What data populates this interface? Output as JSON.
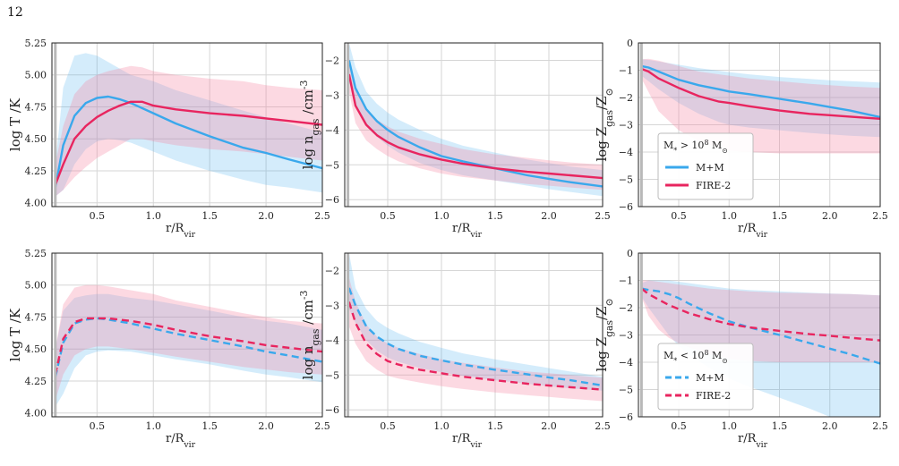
{
  "page_number": "12",
  "colors": {
    "mm": "#3aa8ec",
    "fire": "#e8255f",
    "mm_band": "#3aa8ec",
    "fire_band": "#f4829f",
    "grid": "#d6d6d6",
    "vline": "#b8b8b8"
  },
  "chart_data": [
    {
      "id": "temp-high",
      "type": "line",
      "row": 0,
      "col": 0,
      "ylabel": "log T /K",
      "xlabel": "r/R_vir",
      "xlim": [
        0.1,
        2.5
      ],
      "ylim": [
        3.97,
        5.25
      ],
      "yticks": [
        "4.00",
        "4.25",
        "4.50",
        "4.75",
        "5.00",
        "5.25"
      ],
      "ytick_values": [
        4.0,
        4.25,
        4.5,
        4.75,
        5.0,
        5.25
      ],
      "xticks": [
        "0.5",
        "1.0",
        "1.5",
        "2.0",
        "2.5"
      ],
      "xtick_values": [
        0.5,
        1.0,
        1.5,
        2.0,
        2.5
      ],
      "dashed": false,
      "series": [
        {
          "key": "mm",
          "x": [
            0.13,
            0.2,
            0.3,
            0.4,
            0.5,
            0.6,
            0.7,
            0.8,
            1.0,
            1.2,
            1.5,
            1.8,
            2.0,
            2.2,
            2.5
          ],
          "y": [
            4.12,
            4.45,
            4.68,
            4.78,
            4.82,
            4.83,
            4.81,
            4.78,
            4.7,
            4.62,
            4.52,
            4.43,
            4.39,
            4.34,
            4.27
          ],
          "lo": [
            4.05,
            4.1,
            4.3,
            4.42,
            4.48,
            4.5,
            4.49,
            4.47,
            4.4,
            4.33,
            4.25,
            4.18,
            4.14,
            4.12,
            4.08
          ],
          "hi": [
            4.3,
            4.9,
            5.15,
            5.17,
            5.15,
            5.1,
            5.05,
            5.0,
            4.95,
            4.88,
            4.8,
            4.72,
            4.67,
            4.62,
            4.55
          ]
        },
        {
          "key": "fire",
          "x": [
            0.13,
            0.2,
            0.3,
            0.4,
            0.5,
            0.6,
            0.7,
            0.8,
            0.9,
            1.0,
            1.2,
            1.5,
            1.8,
            2.0,
            2.2,
            2.5
          ],
          "y": [
            4.14,
            4.3,
            4.5,
            4.6,
            4.67,
            4.72,
            4.76,
            4.79,
            4.79,
            4.76,
            4.73,
            4.7,
            4.68,
            4.66,
            4.64,
            4.61
          ],
          "lo": [
            4.05,
            4.1,
            4.2,
            4.28,
            4.35,
            4.4,
            4.45,
            4.5,
            4.5,
            4.48,
            4.45,
            4.42,
            4.4,
            4.38,
            4.36,
            4.33
          ],
          "hi": [
            4.3,
            4.6,
            4.85,
            4.95,
            5.0,
            5.03,
            5.05,
            5.07,
            5.06,
            5.03,
            5.0,
            4.97,
            4.95,
            4.92,
            4.9,
            4.88
          ]
        }
      ]
    },
    {
      "id": "ngas-high",
      "type": "line",
      "row": 0,
      "col": 1,
      "ylabel": "log n_gas /cm^-3",
      "xlabel": "r/R_vir",
      "xlim": [
        0.1,
        2.5
      ],
      "ylim": [
        -6.2,
        -1.5
      ],
      "yticks": [
        "-6",
        "-5",
        "-4",
        "-3",
        "-2"
      ],
      "ytick_values": [
        -6,
        -5,
        -4,
        -3,
        -2
      ],
      "xticks": [
        "0.5",
        "1.0",
        "1.5",
        "2.0",
        "2.5"
      ],
      "xtick_values": [
        0.5,
        1.0,
        1.5,
        2.0,
        2.5
      ],
      "dashed": false,
      "series": [
        {
          "key": "mm",
          "x": [
            0.14,
            0.2,
            0.3,
            0.4,
            0.5,
            0.6,
            0.8,
            1.0,
            1.2,
            1.5,
            1.8,
            2.0,
            2.2,
            2.5
          ],
          "y": [
            -2.0,
            -2.8,
            -3.4,
            -3.75,
            -4.0,
            -4.2,
            -4.5,
            -4.75,
            -4.9,
            -5.1,
            -5.3,
            -5.4,
            -5.5,
            -5.62
          ],
          "lo": [
            -2.6,
            -3.3,
            -3.9,
            -4.2,
            -4.45,
            -4.65,
            -4.95,
            -5.15,
            -5.3,
            -5.45,
            -5.6,
            -5.7,
            -5.78,
            -5.9
          ],
          "hi": [
            -1.5,
            -2.2,
            -2.9,
            -3.25,
            -3.5,
            -3.7,
            -4.0,
            -4.25,
            -4.45,
            -4.65,
            -4.85,
            -4.95,
            -5.05,
            -5.15
          ]
        },
        {
          "key": "fire",
          "x": [
            0.14,
            0.2,
            0.3,
            0.4,
            0.5,
            0.6,
            0.8,
            1.0,
            1.2,
            1.5,
            1.8,
            2.0,
            2.2,
            2.5
          ],
          "y": [
            -2.4,
            -3.3,
            -3.85,
            -4.15,
            -4.35,
            -4.5,
            -4.7,
            -4.85,
            -4.97,
            -5.1,
            -5.2,
            -5.25,
            -5.3,
            -5.38
          ],
          "lo": [
            -2.9,
            -3.8,
            -4.3,
            -4.55,
            -4.75,
            -4.9,
            -5.1,
            -5.25,
            -5.35,
            -5.45,
            -5.55,
            -5.6,
            -5.65,
            -5.72
          ],
          "hi": [
            -1.9,
            -2.8,
            -3.4,
            -3.7,
            -3.9,
            -4.05,
            -4.25,
            -4.4,
            -4.55,
            -4.7,
            -4.8,
            -4.87,
            -4.93,
            -5.0
          ]
        }
      ]
    },
    {
      "id": "zgas-high",
      "type": "line",
      "row": 0,
      "col": 2,
      "ylabel": "log Z_gas/Z_sun",
      "xlabel": "r/R_vir",
      "xlim": [
        0.1,
        2.5
      ],
      "ylim": [
        -6,
        0
      ],
      "yticks": [
        "-6",
        "-5",
        "-4",
        "-3",
        "-2",
        "-1",
        "0"
      ],
      "ytick_values": [
        -6,
        -5,
        -4,
        -3,
        -2,
        -1,
        0
      ],
      "xticks": [
        "0.5",
        "1.0",
        "1.5",
        "2.0",
        "2.5"
      ],
      "xtick_values": [
        0.5,
        1.0,
        1.5,
        2.0,
        2.5
      ],
      "dashed": false,
      "legend": {
        "title": "M_* > 10^8 M_sun",
        "entries": [
          {
            "key": "mm",
            "label": "M+M"
          },
          {
            "key": "fire",
            "label": "FIRE-2"
          }
        ]
      },
      "series": [
        {
          "key": "mm",
          "x": [
            0.13,
            0.2,
            0.3,
            0.5,
            0.7,
            0.9,
            1.0,
            1.2,
            1.5,
            1.8,
            2.0,
            2.2,
            2.5
          ],
          "y": [
            -0.85,
            -0.9,
            -1.05,
            -1.35,
            -1.55,
            -1.7,
            -1.78,
            -1.88,
            -2.05,
            -2.22,
            -2.35,
            -2.48,
            -2.72
          ],
          "lo": [
            -1.2,
            -1.4,
            -1.7,
            -2.2,
            -2.6,
            -2.9,
            -3.0,
            -3.1,
            -3.2,
            -3.3,
            -3.35,
            -3.4,
            -3.45
          ],
          "hi": [
            -0.6,
            -0.62,
            -0.68,
            -0.8,
            -0.92,
            -1.02,
            -1.07,
            -1.15,
            -1.25,
            -1.32,
            -1.37,
            -1.4,
            -1.45
          ]
        },
        {
          "key": "fire",
          "x": [
            0.13,
            0.2,
            0.3,
            0.5,
            0.7,
            0.9,
            1.0,
            1.2,
            1.5,
            1.8,
            2.0,
            2.2,
            2.5
          ],
          "y": [
            -0.95,
            -1.05,
            -1.3,
            -1.65,
            -1.95,
            -2.15,
            -2.2,
            -2.32,
            -2.48,
            -2.6,
            -2.65,
            -2.7,
            -2.78
          ],
          "lo": [
            -1.3,
            -1.8,
            -2.5,
            -3.2,
            -3.6,
            -3.85,
            -3.95,
            -4.0,
            -4.05,
            -4.05,
            -4.05,
            -4.05,
            -4.05
          ],
          "hi": [
            -0.6,
            -0.58,
            -0.65,
            -0.85,
            -1.05,
            -1.15,
            -1.2,
            -1.3,
            -1.4,
            -1.5,
            -1.55,
            -1.6,
            -1.65
          ]
        }
      ]
    },
    {
      "id": "temp-low",
      "type": "line",
      "row": 1,
      "col": 0,
      "ylabel": "log T /K",
      "xlabel": "r/R_vir",
      "xlim": [
        0.1,
        2.5
      ],
      "ylim": [
        3.97,
        5.25
      ],
      "yticks": [
        "4.00",
        "4.25",
        "4.50",
        "4.75",
        "5.00",
        "5.25"
      ],
      "ytick_values": [
        4.0,
        4.25,
        4.5,
        4.75,
        5.0,
        5.25
      ],
      "xticks": [
        "0.5",
        "1.0",
        "1.5",
        "2.0",
        "2.5"
      ],
      "xtick_values": [
        0.5,
        1.0,
        1.5,
        2.0,
        2.5
      ],
      "dashed": true,
      "series": [
        {
          "key": "mm",
          "x": [
            0.13,
            0.2,
            0.3,
            0.4,
            0.5,
            0.6,
            0.8,
            1.0,
            1.2,
            1.5,
            1.8,
            2.0,
            2.2,
            2.5
          ],
          "y": [
            4.28,
            4.55,
            4.7,
            4.73,
            4.74,
            4.73,
            4.7,
            4.66,
            4.62,
            4.57,
            4.52,
            4.48,
            4.45,
            4.4
          ],
          "lo": [
            4.05,
            4.15,
            4.35,
            4.45,
            4.48,
            4.49,
            4.48,
            4.45,
            4.42,
            4.38,
            4.33,
            4.3,
            4.28,
            4.24
          ],
          "hi": [
            4.5,
            4.8,
            4.9,
            4.92,
            4.93,
            4.93,
            4.9,
            4.88,
            4.85,
            4.8,
            4.75,
            4.72,
            4.7,
            4.65
          ]
        },
        {
          "key": "fire",
          "x": [
            0.13,
            0.2,
            0.3,
            0.4,
            0.5,
            0.6,
            0.8,
            1.0,
            1.2,
            1.5,
            1.8,
            2.0,
            2.2,
            2.5
          ],
          "y": [
            4.3,
            4.58,
            4.71,
            4.74,
            4.74,
            4.74,
            4.72,
            4.69,
            4.65,
            4.6,
            4.56,
            4.53,
            4.51,
            4.48
          ],
          "lo": [
            4.1,
            4.3,
            4.45,
            4.5,
            4.52,
            4.52,
            4.5,
            4.47,
            4.44,
            4.4,
            4.36,
            4.34,
            4.32,
            4.3
          ],
          "hi": [
            4.5,
            4.85,
            4.98,
            5.0,
            5.0,
            4.99,
            4.96,
            4.93,
            4.88,
            4.83,
            4.78,
            4.75,
            4.72,
            4.7
          ]
        }
      ]
    },
    {
      "id": "ngas-low",
      "type": "line",
      "row": 1,
      "col": 1,
      "ylabel": "log n_gas /cm^-3",
      "xlabel": "r/R_vir",
      "xlim": [
        0.1,
        2.5
      ],
      "ylim": [
        -6.2,
        -1.5
      ],
      "yticks": [
        "-6",
        "-5",
        "-4",
        "-3",
        "-2"
      ],
      "ytick_values": [
        -6,
        -5,
        -4,
        -3,
        -2
      ],
      "xticks": [
        "0.5",
        "1.0",
        "1.5",
        "2.0",
        "2.5"
      ],
      "xtick_values": [
        0.5,
        1.0,
        1.5,
        2.0,
        2.5
      ],
      "dashed": true,
      "series": [
        {
          "key": "mm",
          "x": [
            0.14,
            0.2,
            0.3,
            0.4,
            0.5,
            0.6,
            0.8,
            1.0,
            1.2,
            1.5,
            1.8,
            2.0,
            2.2,
            2.5
          ],
          "y": [
            -2.5,
            -3.0,
            -3.6,
            -3.9,
            -4.1,
            -4.25,
            -4.45,
            -4.58,
            -4.7,
            -4.85,
            -4.98,
            -5.07,
            -5.15,
            -5.3
          ],
          "lo": [
            -3.1,
            -3.5,
            -4.0,
            -4.3,
            -4.5,
            -4.62,
            -4.8,
            -4.92,
            -5.03,
            -5.15,
            -5.25,
            -5.32,
            -5.38,
            -5.45
          ],
          "hi": [
            -1.5,
            -2.5,
            -3.1,
            -3.45,
            -3.65,
            -3.8,
            -4.05,
            -4.22,
            -4.38,
            -4.55,
            -4.7,
            -4.8,
            -4.9,
            -5.05
          ]
        },
        {
          "key": "fire",
          "x": [
            0.14,
            0.2,
            0.3,
            0.4,
            0.5,
            0.6,
            0.8,
            1.0,
            1.2,
            1.5,
            1.8,
            2.0,
            2.2,
            2.5
          ],
          "y": [
            -2.9,
            -3.5,
            -4.1,
            -4.4,
            -4.6,
            -4.7,
            -4.85,
            -4.95,
            -5.05,
            -5.15,
            -5.25,
            -5.3,
            -5.35,
            -5.42
          ],
          "lo": [
            -3.6,
            -4.1,
            -4.6,
            -4.85,
            -5.02,
            -5.1,
            -5.22,
            -5.32,
            -5.4,
            -5.5,
            -5.58,
            -5.63,
            -5.68,
            -5.75
          ],
          "hi": [
            -2.2,
            -2.9,
            -3.55,
            -3.9,
            -4.1,
            -4.22,
            -4.4,
            -4.55,
            -4.65,
            -4.78,
            -4.9,
            -4.95,
            -5.0,
            -5.08
          ]
        }
      ]
    },
    {
      "id": "zgas-low",
      "type": "line",
      "row": 1,
      "col": 2,
      "ylabel": "log Z_gas/Z_sun",
      "xlabel": "r/R_vir",
      "xlim": [
        0.1,
        2.5
      ],
      "ylim": [
        -6,
        0
      ],
      "yticks": [
        "-6",
        "-5",
        "-4",
        "-3",
        "-2",
        "-1",
        "0"
      ],
      "ytick_values": [
        -6,
        -5,
        -4,
        -3,
        -2,
        -1,
        0
      ],
      "xticks": [
        "0.5",
        "1.0",
        "1.5",
        "2.0",
        "2.5"
      ],
      "xtick_values": [
        0.5,
        1.0,
        1.5,
        2.0,
        2.5
      ],
      "dashed": true,
      "legend": {
        "title": "M_* < 10^8 M_sun",
        "entries": [
          {
            "key": "mm",
            "label": "M+M"
          },
          {
            "key": "fire",
            "label": "FIRE-2"
          }
        ]
      },
      "series": [
        {
          "key": "mm",
          "x": [
            0.13,
            0.2,
            0.3,
            0.4,
            0.5,
            0.6,
            0.8,
            1.0,
            1.2,
            1.5,
            1.8,
            2.0,
            2.2,
            2.5
          ],
          "y": [
            -1.3,
            -1.35,
            -1.4,
            -1.5,
            -1.65,
            -1.85,
            -2.2,
            -2.5,
            -2.72,
            -3.0,
            -3.3,
            -3.5,
            -3.7,
            -4.05
          ],
          "lo": [
            -1.6,
            -2.0,
            -2.5,
            -3.0,
            -3.4,
            -3.7,
            -4.2,
            -4.6,
            -4.9,
            -5.3,
            -5.7,
            -6.0,
            -6.0,
            -6.0
          ],
          "hi": [
            -1.1,
            -1.0,
            -1.0,
            -1.0,
            -1.05,
            -1.1,
            -1.2,
            -1.3,
            -1.35,
            -1.4,
            -1.45,
            -1.48,
            -1.5,
            -1.55
          ]
        },
        {
          "key": "fire",
          "x": [
            0.13,
            0.2,
            0.3,
            0.4,
            0.5,
            0.6,
            0.8,
            1.0,
            1.2,
            1.5,
            1.8,
            2.0,
            2.2,
            2.5
          ],
          "y": [
            -1.3,
            -1.5,
            -1.7,
            -1.9,
            -2.05,
            -2.2,
            -2.42,
            -2.6,
            -2.72,
            -2.85,
            -2.97,
            -3.03,
            -3.1,
            -3.2
          ],
          "lo": [
            -1.6,
            -2.3,
            -2.8,
            -3.1,
            -3.3,
            -3.45,
            -3.7,
            -3.88,
            -3.95,
            -4.0,
            -4.0,
            -4.0,
            -4.0,
            -4.0
          ],
          "hi": [
            -1.0,
            -1.0,
            -1.05,
            -1.1,
            -1.15,
            -1.2,
            -1.3,
            -1.35,
            -1.4,
            -1.45,
            -1.47,
            -1.49,
            -1.5,
            -1.55
          ]
        }
      ]
    }
  ]
}
